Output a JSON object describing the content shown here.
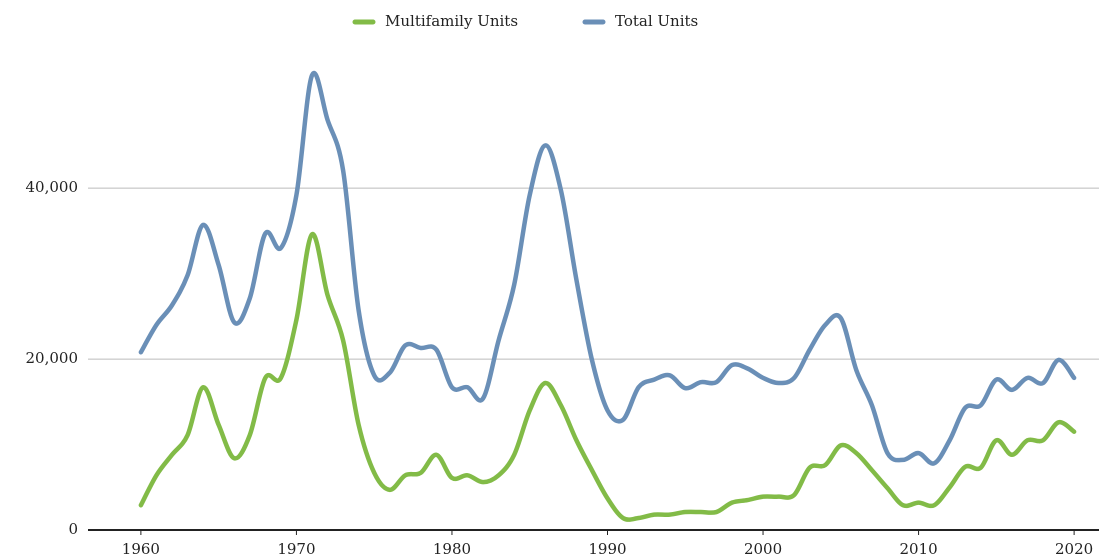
{
  "chart_data": {
    "type": "line",
    "x": [
      1960,
      1961,
      1962,
      1963,
      1964,
      1965,
      1966,
      1967,
      1968,
      1969,
      1970,
      1971,
      1972,
      1973,
      1974,
      1975,
      1976,
      1977,
      1978,
      1979,
      1980,
      1981,
      1982,
      1983,
      1984,
      1985,
      1986,
      1987,
      1988,
      1989,
      1990,
      1991,
      1992,
      1993,
      1994,
      1995,
      1996,
      1997,
      1998,
      1999,
      2000,
      2001,
      2002,
      2003,
      2004,
      2005,
      2006,
      2007,
      2008,
      2009,
      2010,
      2011,
      2012,
      2013,
      2014,
      2015,
      2016,
      2017,
      2018,
      2019,
      2020
    ],
    "series": [
      {
        "name": "Multifamily Units",
        "color": "#82bb47",
        "values": [
          2900,
          6400,
          8800,
          11100,
          16700,
          12300,
          8400,
          11100,
          17800,
          17800,
          24600,
          34600,
          27500,
          22200,
          12300,
          6700,
          4700,
          6400,
          6700,
          8800,
          6100,
          6400,
          5600,
          6400,
          8800,
          14000,
          17200,
          14600,
          10500,
          7000,
          3700,
          1400,
          1400,
          1800,
          1800,
          2100,
          2100,
          2100,
          3200,
          3500,
          3900,
          3900,
          4100,
          7300,
          7600,
          9900,
          9000,
          7000,
          4900,
          2900,
          3200,
          2900,
          5000,
          7400,
          7300,
          10500,
          8800,
          10500,
          10500,
          12600,
          11500
        ]
      },
      {
        "name": "Total Units",
        "color": "#6a8fb7",
        "values": [
          20800,
          24000,
          26300,
          29800,
          35700,
          31000,
          24300,
          27100,
          34700,
          33000,
          39200,
          53200,
          48000,
          42100,
          25700,
          18100,
          18400,
          21600,
          21300,
          21100,
          16700,
          16700,
          15400,
          22200,
          28700,
          39200,
          45000,
          39800,
          29300,
          19900,
          14000,
          12900,
          16700,
          17600,
          18100,
          16600,
          17300,
          17300,
          19300,
          18900,
          17800,
          17200,
          17800,
          21100,
          24000,
          24800,
          18700,
          14600,
          9000,
          8200,
          9000,
          7800,
          10500,
          14300,
          14600,
          17600,
          16400,
          17800,
          17200,
          19900,
          17800
        ]
      }
    ],
    "xlim": [
      1956.6,
      2021.6
    ],
    "xticks": [
      1960,
      1970,
      1980,
      1990,
      2000,
      2010,
      2020
    ],
    "ylim": [
      0,
      55000
    ],
    "yticks": [
      0,
      {
        "value": 20000,
        "label": "20,000"
      },
      {
        "value": 40000,
        "label": "40,000"
      }
    ],
    "grid": true,
    "legend": "top"
  }
}
